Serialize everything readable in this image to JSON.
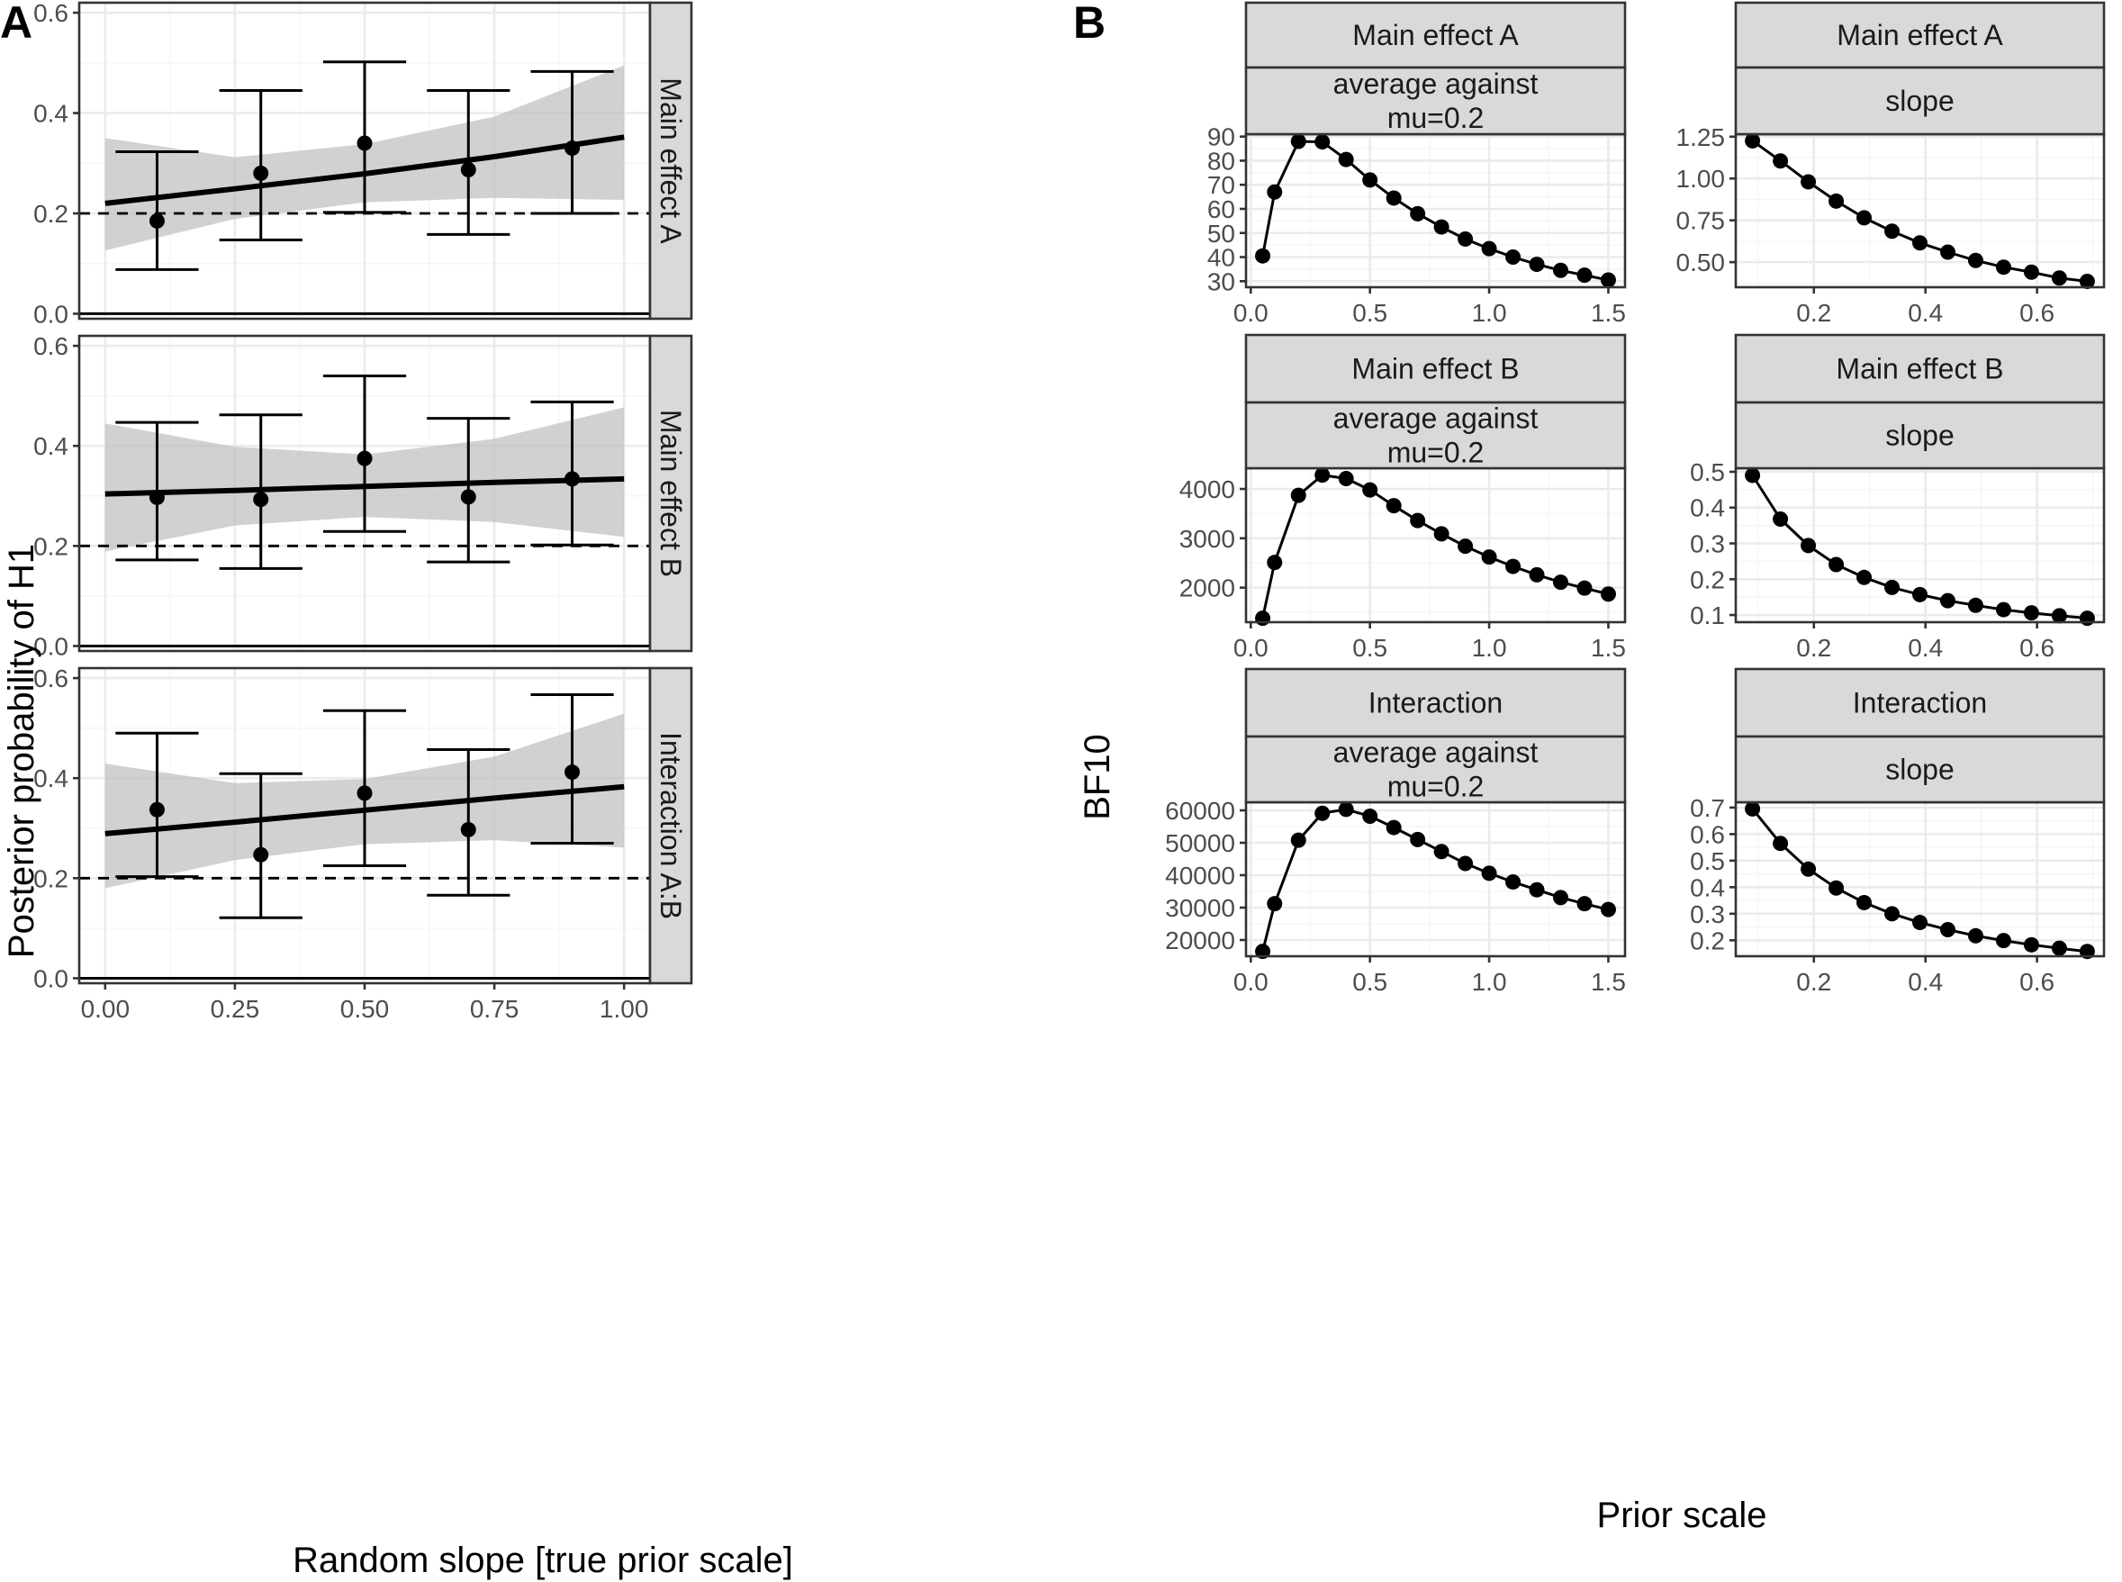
{
  "colors": {
    "strip_fill": "#d9d9d9",
    "ribbon": "#bebebe",
    "grid_major": "#ebebeb",
    "grid_minor": "#f5f5f5",
    "ink": "#000000",
    "frame": "#333333"
  },
  "panel_labels": {
    "left": "A",
    "right": "B"
  },
  "chart_data": [
    {
      "id": "A",
      "type": "scatter",
      "subtype": "point-errorbar with linear fit and ribbon",
      "xlabel": "Random slope [true prior scale]",
      "ylabel": "Posterior probability of H1",
      "xlim": [
        -0.05,
        1.05
      ],
      "ylim": [
        -0.01,
        0.62
      ],
      "x_ticks": [
        0,
        0.25,
        0.5,
        0.75,
        1.0
      ],
      "x_tick_labels": [
        "0.00",
        "0.25",
        "0.50",
        "0.75",
        "1.00"
      ],
      "y_ticks": [
        0.0,
        0.2,
        0.4,
        0.6
      ],
      "y_tick_labels": [
        "0.0",
        "0.2",
        "0.4",
        "0.6"
      ],
      "reference_lines": {
        "solid_at": 0.0,
        "dashed_at": 0.2
      },
      "facets": [
        {
          "strip": "Main effect A",
          "x": [
            0.1,
            0.3,
            0.5,
            0.7,
            0.9
          ],
          "y": [
            0.185,
            0.28,
            0.34,
            0.287,
            0.33
          ],
          "ymin": [
            0.088,
            0.147,
            0.202,
            0.158,
            0.2
          ],
          "ymax": [
            0.323,
            0.445,
            0.502,
            0.445,
            0.483
          ],
          "fit": {
            "x": [
              0,
              0.25,
              0.5,
              0.75,
              1.0
            ],
            "y": [
              0.22,
              0.249,
              0.279,
              0.313,
              0.352
            ]
          },
          "ribbon": {
            "x": [
              0,
              0.25,
              0.5,
              0.75,
              1.0
            ],
            "lower": [
              0.126,
              0.189,
              0.222,
              0.231,
              0.227
            ],
            "upper": [
              0.35,
              0.312,
              0.338,
              0.393,
              0.495
            ]
          }
        },
        {
          "strip": "Main effect B",
          "x": [
            0.1,
            0.3,
            0.5,
            0.7,
            0.9
          ],
          "y": [
            0.297,
            0.293,
            0.375,
            0.298,
            0.334
          ],
          "ymin": [
            0.172,
            0.155,
            0.229,
            0.168,
            0.202
          ],
          "ymax": [
            0.447,
            0.462,
            0.54,
            0.455,
            0.488
          ],
          "fit": {
            "x": [
              0,
              0.25,
              0.5,
              0.75,
              1.0
            ],
            "y": [
              0.304,
              0.311,
              0.319,
              0.327,
              0.334
            ]
          },
          "ribbon": {
            "x": [
              0,
              0.25,
              0.5,
              0.75,
              1.0
            ],
            "lower": [
              0.189,
              0.241,
              0.258,
              0.248,
              0.218
            ],
            "upper": [
              0.445,
              0.398,
              0.383,
              0.414,
              0.477
            ]
          }
        },
        {
          "strip": "Interaction A:B",
          "x": [
            0.1,
            0.3,
            0.5,
            0.7,
            0.9
          ],
          "y": [
            0.337,
            0.247,
            0.37,
            0.297,
            0.412
          ],
          "ymin": [
            0.203,
            0.121,
            0.225,
            0.166,
            0.27
          ],
          "ymax": [
            0.49,
            0.409,
            0.535,
            0.457,
            0.567
          ],
          "fit": {
            "x": [
              0,
              0.25,
              0.5,
              0.75,
              1.0
            ],
            "y": [
              0.289,
              0.312,
              0.336,
              0.36,
              0.383
            ]
          },
          "ribbon": {
            "x": [
              0,
              0.25,
              0.5,
              0.75,
              1.0
            ],
            "lower": [
              0.18,
              0.236,
              0.268,
              0.276,
              0.261
            ],
            "upper": [
              0.429,
              0.39,
              0.398,
              0.443,
              0.529
            ]
          }
        }
      ]
    },
    {
      "id": "B",
      "type": "line",
      "subtype": "line with points, faceted 3x2",
      "xlabel": "Prior scale",
      "ylabel": "BF10",
      "facets": [
        {
          "strip_top": "Main effect A",
          "strip_bottom": [
            "average against",
            "mu=0.2"
          ],
          "x": [
            0.05,
            0.1,
            0.2,
            0.3,
            0.4,
            0.5,
            0.6,
            0.7,
            0.8,
            0.9,
            1.0,
            1.1,
            1.2,
            1.3,
            1.4,
            1.5
          ],
          "y": [
            40.5,
            67,
            88,
            87.8,
            80.5,
            72,
            64.5,
            58,
            52.5,
            47.5,
            43.5,
            40,
            37,
            34.5,
            32.5,
            30.5
          ],
          "xlim": [
            -0.02,
            1.57
          ],
          "ylim": [
            27.5,
            91
          ],
          "x_ticks": [
            0,
            0.5,
            1.0,
            1.5
          ],
          "x_tick_labels": [
            "0.0",
            "0.5",
            "1.0",
            "1.5"
          ],
          "y_ticks": [
            30,
            40,
            50,
            60,
            70,
            80,
            90
          ],
          "y_tick_labels": [
            "30",
            "40",
            "50",
            "60",
            "70",
            "80",
            "90"
          ]
        },
        {
          "strip_top": "Main effect A",
          "strip_bottom": [
            "slope"
          ],
          "x": [
            0.09,
            0.14,
            0.19,
            0.24,
            0.29,
            0.34,
            0.39,
            0.44,
            0.49,
            0.54,
            0.59,
            0.64,
            0.69
          ],
          "y": [
            1.225,
            1.105,
            0.98,
            0.865,
            0.765,
            0.685,
            0.615,
            0.56,
            0.51,
            0.47,
            0.44,
            0.405,
            0.385
          ],
          "xlim": [
            0.06,
            0.72
          ],
          "ylim": [
            0.35,
            1.265
          ],
          "x_ticks": [
            0.2,
            0.4,
            0.6
          ],
          "x_tick_labels": [
            "0.2",
            "0.4",
            "0.6"
          ],
          "y_ticks": [
            0.5,
            0.75,
            1.0,
            1.25
          ],
          "y_tick_labels": [
            "0.50",
            "0.75",
            "1.00",
            "1.25"
          ]
        },
        {
          "strip_top": "Main effect B",
          "strip_bottom": [
            "average against",
            "mu=0.2"
          ],
          "x": [
            0.05,
            0.1,
            0.2,
            0.3,
            0.4,
            0.5,
            0.6,
            0.7,
            0.8,
            0.9,
            1.0,
            1.1,
            1.2,
            1.3,
            1.4,
            1.5
          ],
          "y": [
            1380,
            2510,
            3870,
            4280,
            4210,
            3980,
            3660,
            3360,
            3090,
            2840,
            2620,
            2430,
            2260,
            2110,
            1990,
            1870
          ],
          "xlim": [
            -0.02,
            1.57
          ],
          "ylim": [
            1300,
            4420
          ],
          "x_ticks": [
            0,
            0.5,
            1.0,
            1.5
          ],
          "x_tick_labels": [
            "0.0",
            "0.5",
            "1.0",
            "1.5"
          ],
          "y_ticks": [
            2000,
            3000,
            4000
          ],
          "y_tick_labels": [
            "2000",
            "3000",
            "4000"
          ]
        },
        {
          "strip_top": "Main effect B",
          "strip_bottom": [
            "slope"
          ],
          "x": [
            0.09,
            0.14,
            0.19,
            0.24,
            0.29,
            0.34,
            0.39,
            0.44,
            0.49,
            0.54,
            0.59,
            0.64,
            0.69
          ],
          "y": [
            0.49,
            0.368,
            0.294,
            0.241,
            0.205,
            0.177,
            0.157,
            0.14,
            0.127,
            0.115,
            0.106,
            0.098,
            0.091
          ],
          "xlim": [
            0.06,
            0.72
          ],
          "ylim": [
            0.08,
            0.51
          ],
          "x_ticks": [
            0.2,
            0.4,
            0.6
          ],
          "x_tick_labels": [
            "0.2",
            "0.4",
            "0.6"
          ],
          "y_ticks": [
            0.1,
            0.2,
            0.3,
            0.4,
            0.5
          ],
          "y_tick_labels": [
            "0.1",
            "0.2",
            "0.3",
            "0.4",
            "0.5"
          ]
        },
        {
          "strip_top": "Interaction",
          "strip_bottom": [
            "average against",
            "mu=0.2"
          ],
          "x": [
            0.05,
            0.1,
            0.2,
            0.3,
            0.4,
            0.5,
            0.6,
            0.7,
            0.8,
            0.9,
            1.0,
            1.1,
            1.2,
            1.3,
            1.4,
            1.5
          ],
          "y": [
            16500,
            31200,
            50800,
            59100,
            60300,
            58200,
            54700,
            51000,
            47300,
            43600,
            40600,
            37900,
            35500,
            33100,
            31200,
            29400
          ],
          "xlim": [
            -0.02,
            1.57
          ],
          "ylim": [
            15000,
            62500
          ],
          "x_ticks": [
            0,
            0.5,
            1.0,
            1.5
          ],
          "x_tick_labels": [
            "0.0",
            "0.5",
            "1.0",
            "1.5"
          ],
          "y_ticks": [
            20000,
            30000,
            40000,
            50000,
            60000
          ],
          "y_tick_labels": [
            "20000",
            "30000",
            "40000",
            "50000",
            "60000"
          ]
        },
        {
          "strip_top": "Interaction",
          "strip_bottom": [
            "slope"
          ],
          "x": [
            0.09,
            0.14,
            0.19,
            0.24,
            0.29,
            0.34,
            0.39,
            0.44,
            0.49,
            0.54,
            0.59,
            0.64,
            0.69
          ],
          "y": [
            0.695,
            0.565,
            0.468,
            0.397,
            0.342,
            0.3,
            0.267,
            0.24,
            0.217,
            0.199,
            0.183,
            0.17,
            0.158
          ],
          "xlim": [
            0.06,
            0.72
          ],
          "ylim": [
            0.14,
            0.72
          ],
          "x_ticks": [
            0.2,
            0.4,
            0.6
          ],
          "x_tick_labels": [
            "0.2",
            "0.4",
            "0.6"
          ],
          "y_ticks": [
            0.2,
            0.3,
            0.4,
            0.5,
            0.6,
            0.7
          ],
          "y_tick_labels": [
            "0.2",
            "0.3",
            "0.4",
            "0.5",
            "0.6",
            "0.7"
          ]
        }
      ]
    }
  ]
}
